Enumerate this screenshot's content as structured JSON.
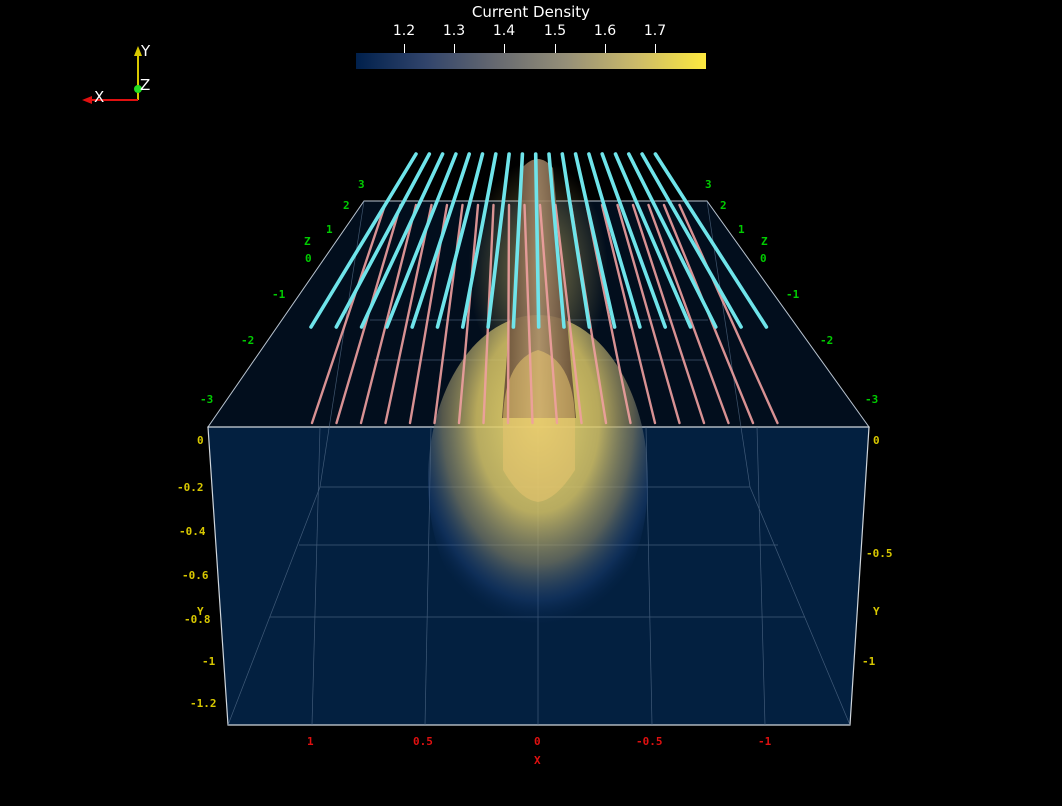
{
  "colorbar": {
    "title": "Current Density",
    "ticks": [
      "1.2",
      "1.3",
      "1.4",
      "1.5",
      "1.6",
      "1.7"
    ],
    "colors": [
      "#00204c",
      "#31446b",
      "#666970",
      "#958f78",
      "#cbba69",
      "#fde93f"
    ]
  },
  "orientation_axes": {
    "x": "X",
    "y": "Y",
    "z": "Z"
  },
  "cube_axes": {
    "z_label": "Z",
    "z_ticks": [
      "3",
      "2",
      "1",
      "0",
      "-1",
      "-2",
      "-3"
    ],
    "y_label": "Y",
    "y_ticks_left": [
      "0",
      "-0.2",
      "-0.4",
      "-0.6",
      "-0.8",
      "-1",
      "-1.2"
    ],
    "y_ticks_right": [
      "0",
      "-0.5",
      "-1"
    ],
    "x_label": "X",
    "x_ticks": [
      "1",
      "0.5",
      "0",
      "-0.5",
      "-1"
    ],
    "colors": {
      "x": "#e01010",
      "y": "#d8c800",
      "z": "#00cc00"
    }
  },
  "scene": {
    "background": "#000000",
    "volume_color": "#031a33",
    "streamline_top_color": "#6fe4ea",
    "streamline_surface_color": "#f0a0a0",
    "plume_color": "#e8d46a",
    "pipe_color": "#8a6a50"
  }
}
